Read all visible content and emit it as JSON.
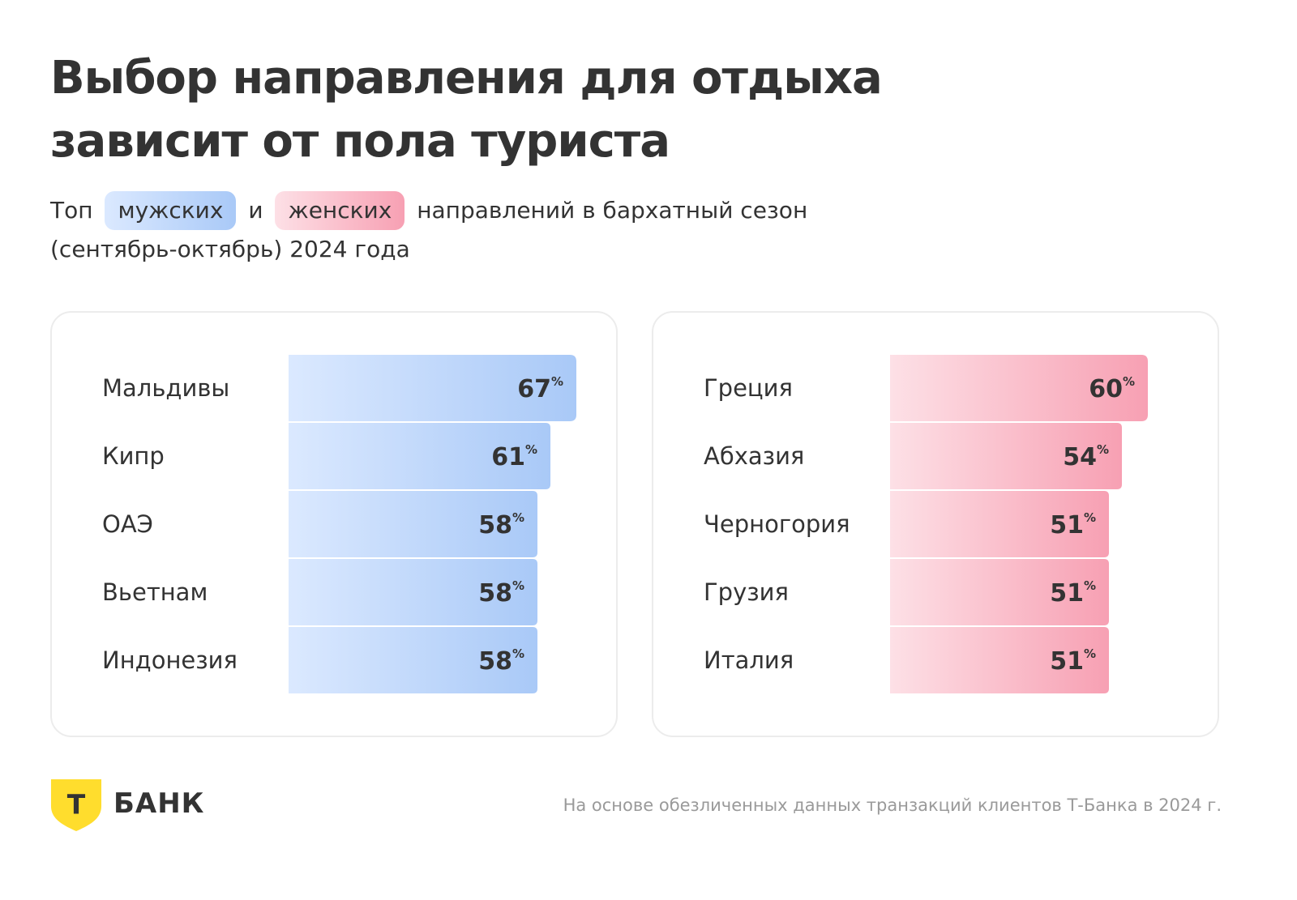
{
  "title": {
    "line1": "Выбор направления для отдыха",
    "line2": "зависит от пола туриста"
  },
  "subtitle": {
    "prefix": "Топ",
    "male_tag": "мужских",
    "conj": "и",
    "female_tag": "женских",
    "suffix": "направлений в бархатный сезон",
    "line2": "(сентябрь-октябрь) 2024 года"
  },
  "colors": {
    "male_light": "#dbe9ff",
    "male_dark": "#a9c9f7",
    "female_light": "#fde0e6",
    "female_dark": "#f7a0b3",
    "text": "#333333",
    "logo_yellow": "#ffdd2d"
  },
  "chart_data": [
    {
      "type": "bar",
      "orientation": "horizontal",
      "categories": [
        "Мальдивы",
        "Кипр",
        "ОАЭ",
        "Вьетнам",
        "Индонезия"
      ],
      "values": [
        67,
        61,
        58,
        58,
        58
      ],
      "value_suffix": "%",
      "color_scheme": "male"
    },
    {
      "type": "bar",
      "orientation": "horizontal",
      "categories": [
        "Греция",
        "Абхазия",
        "Черногория",
        "Грузия",
        "Италия"
      ],
      "values": [
        60,
        54,
        51,
        51,
        51
      ],
      "value_suffix": "%",
      "color_scheme": "female"
    }
  ],
  "brand": {
    "logo_letter": "Т",
    "name": "БАНК"
  },
  "footnote": "На основе обезличенных данных транзакций клиентов Т-Банка в 2024 г."
}
